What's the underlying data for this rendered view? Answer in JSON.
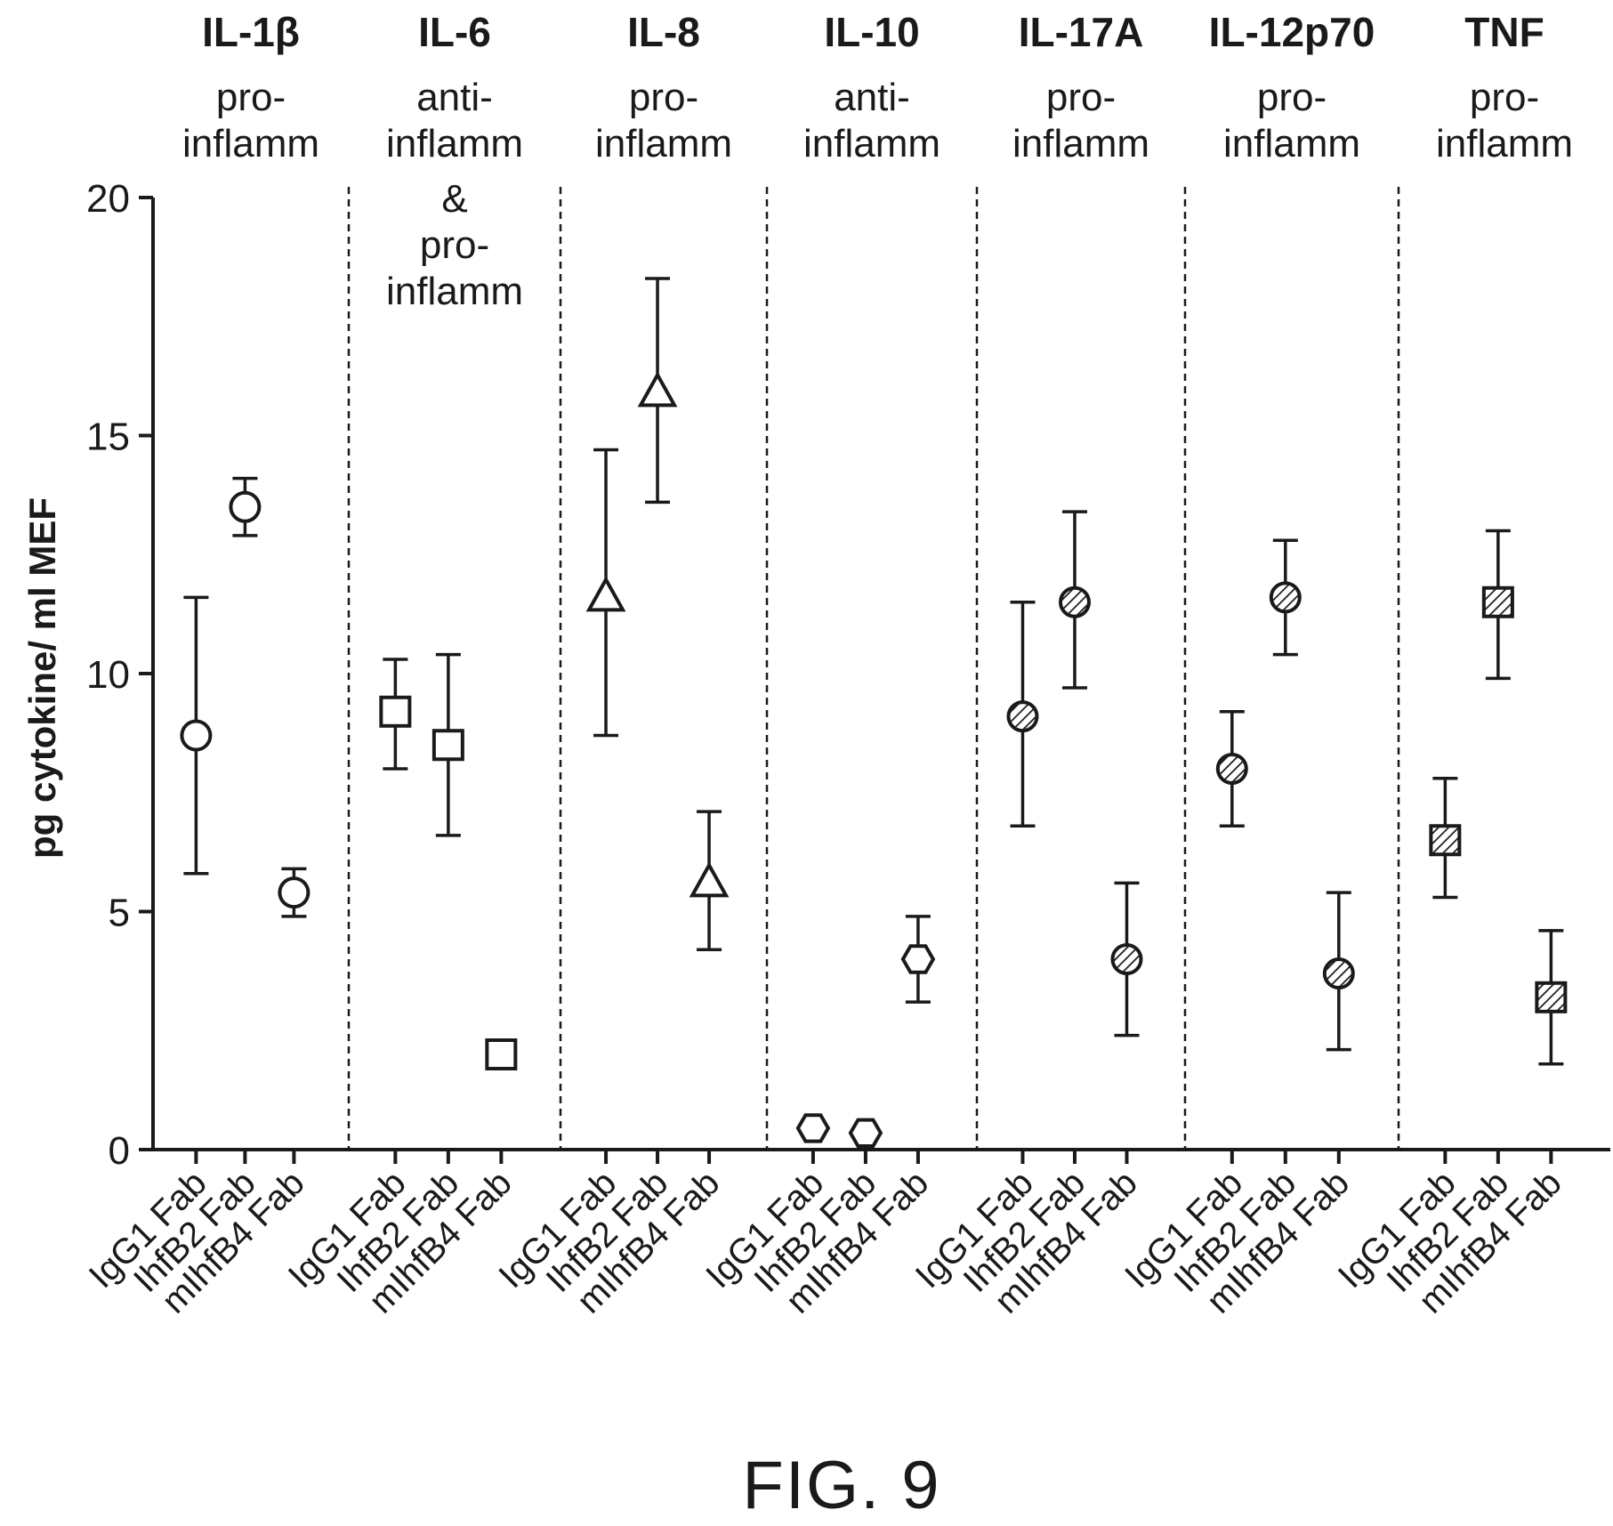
{
  "chart_data": {
    "type": "scatter",
    "ylabel": "pg cytokine/ ml MEF",
    "ylim": [
      0,
      20
    ],
    "yticks": [
      0,
      5,
      10,
      15,
      20
    ],
    "caption": "FIG. 9",
    "categories": [
      "IgG1 Fab",
      "IhfB2 Fab",
      "mIhfB4 Fab"
    ],
    "panels": [
      {
        "title": "IL-1β",
        "description": [
          "pro-",
          "inflamm"
        ],
        "marker": "circle",
        "fill": "none",
        "points": [
          {
            "category": "IgG1 Fab",
            "y": 8.7,
            "err_low": 5.8,
            "err_high": 11.6
          },
          {
            "category": "IhfB2 Fab",
            "y": 13.5,
            "err_low": 12.9,
            "err_high": 14.1
          },
          {
            "category": "mIhfB4 Fab",
            "y": 5.4,
            "err_low": 4.9,
            "err_high": 5.9
          }
        ]
      },
      {
        "title": "IL-6",
        "description": [
          "anti-",
          "inflamm",
          "&",
          "pro-",
          "inflamm"
        ],
        "marker": "square",
        "fill": "none",
        "points": [
          {
            "category": "IgG1 Fab",
            "y": 9.2,
            "err_low": 8.0,
            "err_high": 10.3
          },
          {
            "category": "IhfB2 Fab",
            "y": 8.5,
            "err_low": 6.6,
            "err_high": 10.4
          },
          {
            "category": "mIhfB4 Fab",
            "y": 2.0
          }
        ]
      },
      {
        "title": "IL-8",
        "description": [
          "pro-",
          "inflamm"
        ],
        "marker": "triangle",
        "fill": "none",
        "points": [
          {
            "category": "IgG1 Fab",
            "y": 11.6,
            "err_low": 8.7,
            "err_high": 14.7
          },
          {
            "category": "IhfB2 Fab",
            "y": 15.9,
            "err_low": 13.6,
            "err_high": 18.3
          },
          {
            "category": "mIhfB4 Fab",
            "y": 5.6,
            "err_low": 4.2,
            "err_high": 7.1
          }
        ]
      },
      {
        "title": "IL-10",
        "description": [
          "anti-",
          "inflamm"
        ],
        "marker": "hexagon",
        "fill": "none",
        "points": [
          {
            "category": "IgG1 Fab",
            "y": 0.45
          },
          {
            "category": "IhfB2 Fab",
            "y": 0.35
          },
          {
            "category": "mIhfB4 Fab",
            "y": 4.0,
            "err_low": 3.1,
            "err_high": 4.9
          }
        ]
      },
      {
        "title": "IL-17A",
        "description": [
          "pro-",
          "inflamm"
        ],
        "marker": "circle",
        "fill": "hatched",
        "points": [
          {
            "category": "IgG1 Fab",
            "y": 9.1,
            "err_low": 6.8,
            "err_high": 11.5
          },
          {
            "category": "IhfB2 Fab",
            "y": 11.5,
            "err_low": 9.7,
            "err_high": 13.4
          },
          {
            "category": "mIhfB4 Fab",
            "y": 4.0,
            "err_low": 2.4,
            "err_high": 5.6
          }
        ]
      },
      {
        "title": "IL-12p70",
        "description": [
          "pro-",
          "inflamm"
        ],
        "marker": "circle",
        "fill": "hatched",
        "points": [
          {
            "category": "IgG1 Fab",
            "y": 8.0,
            "err_low": 6.8,
            "err_high": 9.2
          },
          {
            "category": "IhfB2 Fab",
            "y": 11.6,
            "err_low": 10.4,
            "err_high": 12.8
          },
          {
            "category": "mIhfB4 Fab",
            "y": 3.7,
            "err_low": 2.1,
            "err_high": 5.4
          }
        ]
      },
      {
        "title": "TNF",
        "description": [
          "pro-",
          "inflamm"
        ],
        "marker": "square",
        "fill": "hatched",
        "points": [
          {
            "category": "IgG1 Fab",
            "y": 6.5,
            "err_low": 5.3,
            "err_high": 7.8
          },
          {
            "category": "IhfB2 Fab",
            "y": 11.5,
            "err_low": 9.9,
            "err_high": 13.0
          },
          {
            "category": "mIhfB4 Fab",
            "y": 3.2,
            "err_low": 1.8,
            "err_high": 4.6
          }
        ]
      }
    ]
  }
}
